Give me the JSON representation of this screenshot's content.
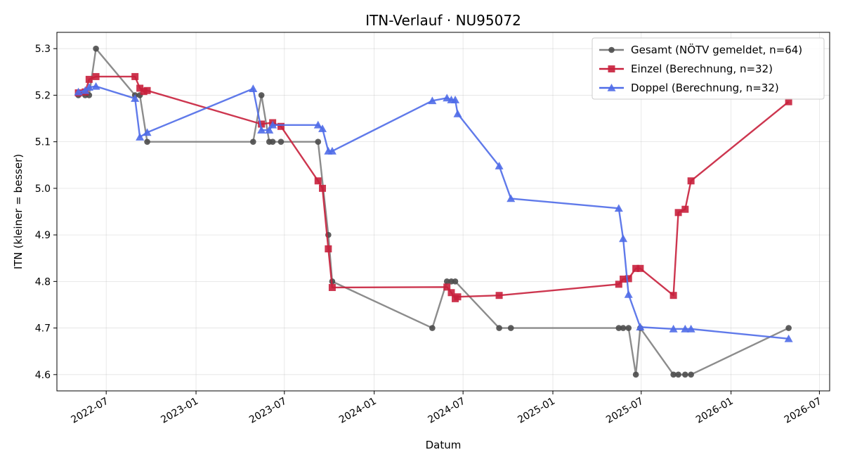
{
  "chart_data": {
    "type": "line",
    "title": "ITN-Verlauf · NU95072",
    "xlabel": "Datum",
    "ylabel": "ITN  (kleiner = besser)",
    "x_ticks": [
      "2022-07-01",
      "2023-01-01",
      "2023-07-01",
      "2024-01-01",
      "2024-07-01",
      "2025-01-01",
      "2025-07-01",
      "2026-01-01",
      "2026-07-01"
    ],
    "x_tick_labels": [
      "2022-07",
      "2023-01",
      "2023-07",
      "2024-01",
      "2024-07",
      "2025-01",
      "2025-07",
      "2026-01",
      "2026-07"
    ],
    "xlim": [
      "2022-03-22",
      "2026-07-22"
    ],
    "y_ticks": [
      4.6,
      4.7,
      4.8,
      4.9,
      5.0,
      5.1,
      5.2,
      5.3
    ],
    "y_tick_labels": [
      "4.6",
      "4.7",
      "4.8",
      "4.9",
      "5.0",
      "5.1",
      "5.2",
      "5.3"
    ],
    "ylim": [
      4.565,
      5.335
    ],
    "grid": true,
    "legend_position": "top-right",
    "series": [
      {
        "name": "Gesamt (NÖTV gemeldet, n=64)",
        "color": "#7f7f7f",
        "marker_color": "#4d4d4d",
        "marker": "circle",
        "points": [
          [
            "2022-05-05",
            5.2
          ],
          [
            "2022-05-19",
            5.2
          ],
          [
            "2022-05-27",
            5.2
          ],
          [
            "2022-06-10",
            5.3
          ],
          [
            "2022-08-29",
            5.2
          ],
          [
            "2022-09-08",
            5.2
          ],
          [
            "2022-09-23",
            5.1
          ],
          [
            "2023-04-28",
            5.1
          ],
          [
            "2023-05-15",
            5.2
          ],
          [
            "2023-05-31",
            5.1
          ],
          [
            "2023-06-07",
            5.1
          ],
          [
            "2023-06-24",
            5.1
          ],
          [
            "2023-09-08",
            5.1
          ],
          [
            "2023-09-29",
            4.9
          ],
          [
            "2023-10-07",
            4.8
          ],
          [
            "2024-04-29",
            4.7
          ],
          [
            "2024-05-29",
            4.8
          ],
          [
            "2024-06-07",
            4.8
          ],
          [
            "2024-06-15",
            4.8
          ],
          [
            "2024-09-13",
            4.7
          ],
          [
            "2024-10-07",
            4.7
          ],
          [
            "2025-05-16",
            4.7
          ],
          [
            "2025-05-25",
            4.7
          ],
          [
            "2025-06-05",
            4.7
          ],
          [
            "2025-06-20",
            4.6
          ],
          [
            "2025-06-29",
            4.7
          ],
          [
            "2025-09-05",
            4.6
          ],
          [
            "2025-09-15",
            4.6
          ],
          [
            "2025-09-29",
            4.6
          ],
          [
            "2025-10-11",
            4.6
          ],
          [
            "2026-04-29",
            4.7
          ]
        ]
      },
      {
        "name": "Einzel (Berechnung, n=32)",
        "color": "#c8203c",
        "marker": "square",
        "points": [
          [
            "2022-05-05",
            5.205
          ],
          [
            "2022-05-19",
            5.207
          ],
          [
            "2022-05-27",
            5.234
          ],
          [
            "2022-06-10",
            5.24
          ],
          [
            "2022-08-29",
            5.24
          ],
          [
            "2022-09-08",
            5.215
          ],
          [
            "2022-09-16",
            5.208
          ],
          [
            "2022-09-23",
            5.21
          ],
          [
            "2023-05-15",
            5.138
          ],
          [
            "2023-06-07",
            5.141
          ],
          [
            "2023-06-24",
            5.133
          ],
          [
            "2023-09-08",
            5.016
          ],
          [
            "2023-09-17",
            5.0
          ],
          [
            "2023-09-29",
            4.87
          ],
          [
            "2023-10-07",
            4.787
          ],
          [
            "2024-05-29",
            4.788
          ],
          [
            "2024-06-07",
            4.776
          ],
          [
            "2024-06-15",
            4.763
          ],
          [
            "2024-06-20",
            4.767
          ],
          [
            "2024-09-13",
            4.77
          ],
          [
            "2025-05-16",
            4.794
          ],
          [
            "2025-05-25",
            4.805
          ],
          [
            "2025-06-05",
            4.806
          ],
          [
            "2025-06-20",
            4.828
          ],
          [
            "2025-06-29",
            4.828
          ],
          [
            "2025-09-05",
            4.77
          ],
          [
            "2025-09-15",
            4.948
          ],
          [
            "2025-09-29",
            4.955
          ],
          [
            "2025-10-11",
            5.016
          ],
          [
            "2026-04-29",
            5.186
          ]
        ]
      },
      {
        "name": "Doppel (Berechnung, n=32)",
        "color": "#4f6ce8",
        "marker": "triangle",
        "points": [
          [
            "2022-05-05",
            5.207
          ],
          [
            "2022-05-19",
            5.21
          ],
          [
            "2022-05-27",
            5.217
          ],
          [
            "2022-06-10",
            5.219
          ],
          [
            "2022-08-29",
            5.193
          ],
          [
            "2022-09-08",
            5.11
          ],
          [
            "2022-09-23",
            5.12
          ],
          [
            "2023-04-28",
            5.214
          ],
          [
            "2023-05-15",
            5.125
          ],
          [
            "2023-05-31",
            5.125
          ],
          [
            "2023-06-07",
            5.136
          ],
          [
            "2023-09-08",
            5.136
          ],
          [
            "2023-09-17",
            5.128
          ],
          [
            "2023-09-29",
            5.08
          ],
          [
            "2023-10-07",
            5.08
          ],
          [
            "2024-04-29",
            5.188
          ],
          [
            "2024-05-29",
            5.194
          ],
          [
            "2024-06-07",
            5.19
          ],
          [
            "2024-06-15",
            5.19
          ],
          [
            "2024-06-20",
            5.16
          ],
          [
            "2024-09-13",
            5.048
          ],
          [
            "2024-10-07",
            4.978
          ],
          [
            "2025-05-16",
            4.957
          ],
          [
            "2025-05-25",
            4.892
          ],
          [
            "2025-06-05",
            4.772
          ],
          [
            "2025-06-29",
            4.702
          ],
          [
            "2025-09-05",
            4.698
          ],
          [
            "2025-09-29",
            4.698
          ],
          [
            "2025-10-11",
            4.698
          ],
          [
            "2026-04-29",
            4.677
          ]
        ]
      }
    ]
  }
}
